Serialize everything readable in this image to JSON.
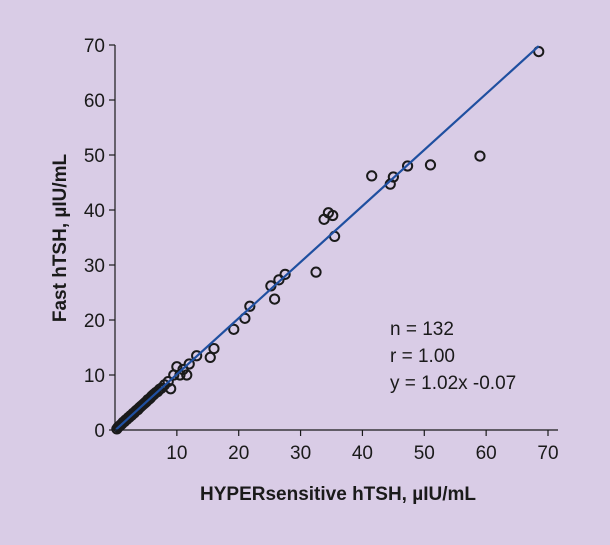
{
  "colors": {
    "background": "#d9cce6",
    "fit_line": "#1f4fa0",
    "points": "#1a1a1a"
  },
  "chart_data": {
    "type": "scatter",
    "title": "",
    "xlabel": "HYPERsensitive hTSH, µIU/mL",
    "ylabel": "Fast hTSH, µIU/mL",
    "xlim": [
      0,
      70
    ],
    "ylim": [
      0,
      70
    ],
    "xticks": [
      "10",
      "20",
      "30",
      "40",
      "50",
      "60",
      "70"
    ],
    "yticks": [
      "0",
      "10",
      "20",
      "30",
      "40",
      "50",
      "60",
      "70"
    ],
    "grid": false,
    "legend": "none",
    "annotations": [
      "n = 132",
      "r = 1.00",
      "y = 1.02x -0.07"
    ],
    "fit_line": {
      "slope": 1.02,
      "intercept": -0.07,
      "x_range": [
        0,
        68.5
      ]
    },
    "series": [
      {
        "x": [
          0.3,
          0.5,
          0.7,
          0.9,
          1.1,
          1.3,
          1.5,
          1.7,
          1.9,
          2.1,
          2.3,
          2.5,
          2.7,
          2.9,
          3.1,
          3.3,
          3.5,
          3.7,
          3.9,
          4.1,
          4.3,
          4.5,
          4.7,
          4.9,
          5.1,
          5.3,
          5.5,
          5.7,
          5.9,
          6.1,
          6.3,
          6.6,
          6.9,
          7.2,
          7.5,
          8.0,
          8.6,
          9.0,
          9.5,
          10.0,
          10.5,
          11.0,
          11.6,
          12.0,
          13.2,
          15.4,
          16.0,
          19.2,
          21.0,
          21.8,
          25.2,
          25.8,
          26.5,
          27.5,
          32.5,
          33.8,
          34.5,
          35.2,
          35.5,
          41.5,
          44.5,
          45.0,
          47.3,
          51.0,
          59.0,
          68.5
        ],
        "y": [
          0.2,
          0.5,
          0.7,
          0.9,
          1.1,
          1.4,
          1.5,
          1.8,
          1.9,
          2.2,
          2.3,
          2.6,
          2.7,
          3.0,
          3.1,
          3.4,
          3.6,
          3.7,
          4.0,
          4.2,
          4.4,
          4.6,
          4.8,
          5.0,
          5.2,
          5.5,
          5.6,
          5.8,
          6.1,
          6.3,
          6.5,
          6.8,
          7.0,
          7.4,
          7.6,
          8.2,
          8.8,
          7.5,
          10.0,
          11.5,
          10.0,
          11.0,
          10.0,
          12.0,
          13.5,
          13.2,
          14.8,
          18.3,
          20.3,
          22.5,
          26.2,
          23.8,
          27.3,
          28.3,
          28.7,
          38.3,
          39.5,
          39.0,
          35.2,
          46.2,
          44.7,
          46.0,
          48.0,
          48.2,
          49.8,
          68.8
        ]
      }
    ]
  }
}
